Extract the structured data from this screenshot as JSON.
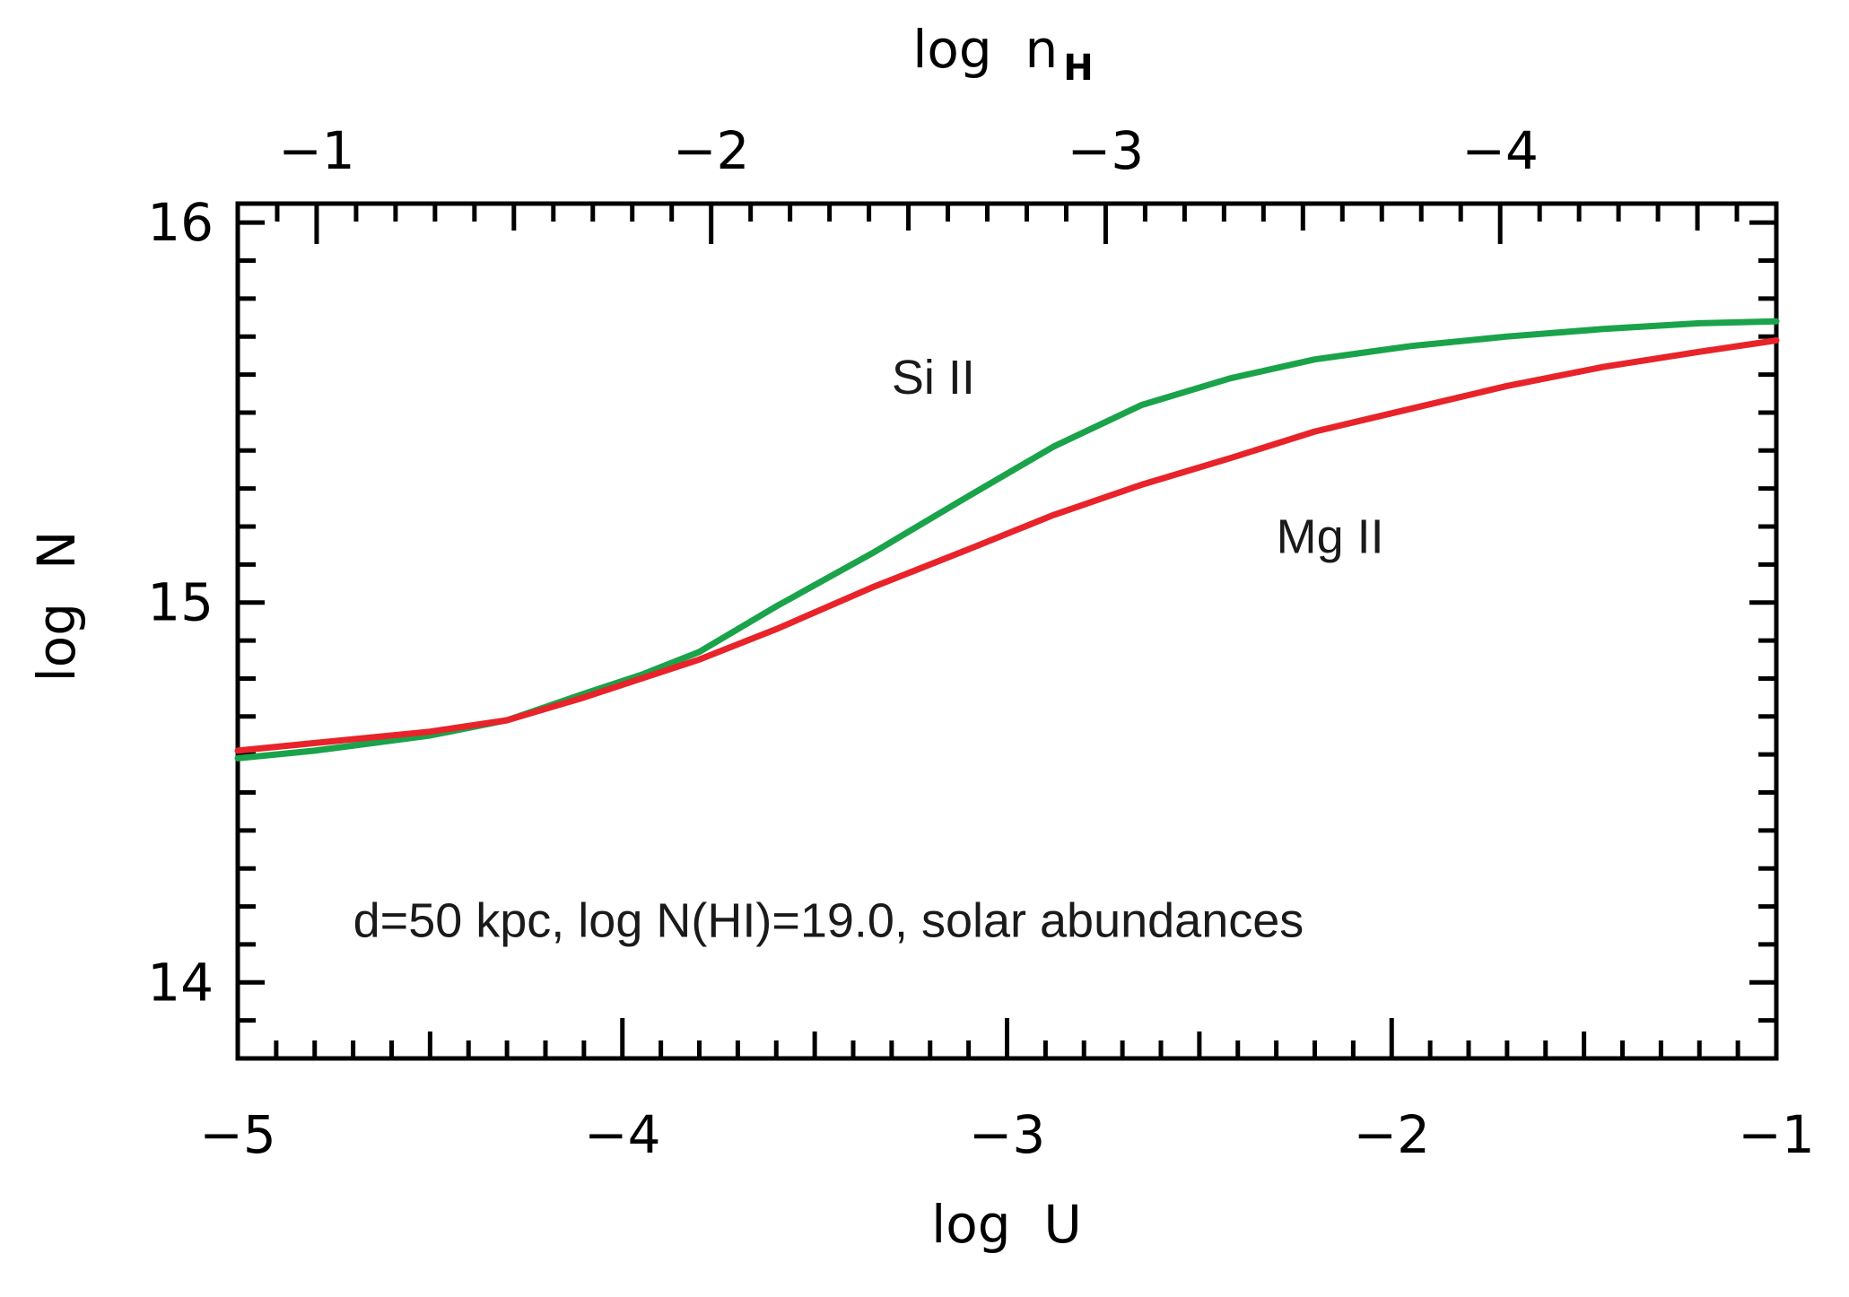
{
  "chart_data": {
    "type": "line",
    "title": "",
    "xlabel": "log  U",
    "ylabel": "log  N",
    "top_xlabel_main": "log  n",
    "top_xlabel_sub": "H",
    "xlim": [
      -5,
      -1
    ],
    "ylim": [
      13.8,
      16.05
    ],
    "top_xlim": [
      -0.8,
      -4.7
    ],
    "x_ticks": [
      -5,
      -4,
      -3,
      -2,
      -1
    ],
    "x_tick_labels": [
      "−5",
      "−4",
      "−3",
      "−2",
      "−1"
    ],
    "y_ticks": [
      14,
      15,
      16
    ],
    "y_tick_labels": [
      "14",
      "15",
      "16"
    ],
    "top_ticks": [
      -1,
      -2,
      -3,
      -4
    ],
    "top_tick_labels": [
      "−1",
      "−2",
      "−3",
      "−4"
    ],
    "grid": false,
    "series": [
      {
        "name": "Si II",
        "color": "#1aa34a",
        "x": [
          -5.0,
          -4.8,
          -4.5,
          -4.3,
          -4.1,
          -3.95,
          -3.8,
          -3.6,
          -3.35,
          -3.1,
          -2.88,
          -2.65,
          -2.42,
          -2.2,
          -1.95,
          -1.7,
          -1.45,
          -1.2,
          -1.0
        ],
        "y": [
          14.59,
          14.61,
          14.65,
          14.69,
          14.76,
          14.81,
          14.87,
          14.99,
          15.13,
          15.28,
          15.41,
          15.52,
          15.59,
          15.64,
          15.675,
          15.7,
          15.72,
          15.735,
          15.74
        ]
      },
      {
        "name": "Mg II",
        "color": "#e8232a",
        "x": [
          -5.0,
          -4.8,
          -4.5,
          -4.3,
          -4.1,
          -3.95,
          -3.8,
          -3.6,
          -3.35,
          -3.1,
          -2.88,
          -2.65,
          -2.42,
          -2.2,
          -1.95,
          -1.7,
          -1.45,
          -1.2,
          -1.0
        ],
        "y": [
          14.61,
          14.63,
          14.66,
          14.69,
          14.75,
          14.8,
          14.85,
          14.93,
          15.04,
          15.14,
          15.23,
          15.31,
          15.38,
          15.45,
          15.51,
          15.57,
          15.62,
          15.66,
          15.69
        ]
      }
    ],
    "series_labels": [
      {
        "text": "Si II",
        "x": -3.3,
        "y": 15.55
      },
      {
        "text": "Mg II",
        "x": -2.3,
        "y": 15.13
      }
    ],
    "annotation": {
      "text": "d=50 kpc, log N(HI)=19.0, solar abundances",
      "x": -4.7,
      "y": 14.12
    }
  }
}
